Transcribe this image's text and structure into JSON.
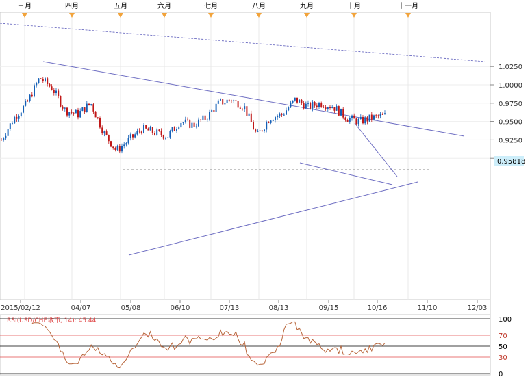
{
  "chart_data": [
    {
      "type": "candlestick",
      "symbol": "USD/CHF",
      "ylim": [
        0.8925,
        1.0375
      ],
      "y_ticks": [
        "1.0250",
        "1.0000",
        "0.9750",
        "0.9500",
        "0.9250",
        "0.9000"
      ],
      "current_price": "0.95818",
      "month_markers": [
        "三月",
        "四月",
        "五月",
        "六月",
        "七月",
        "八月",
        "九月",
        "十月",
        "十一月"
      ],
      "x_date_labels": [
        "2015/02/12",
        "04/07",
        "05/08",
        "06/10",
        "07/13",
        "08/13",
        "09/15",
        "10/16",
        "11/10",
        "12/03"
      ],
      "reference_line": 0.953,
      "close_path": [
        [
          "2015/02/12",
          0.925
        ],
        [
          "02/24",
          0.955
        ],
        [
          "03/02",
          0.975
        ],
        [
          "03/13",
          1.01
        ],
        [
          "03/20",
          0.995
        ],
        [
          "04/07",
          0.965
        ],
        [
          "04/15",
          0.96
        ],
        [
          "04/23",
          0.975
        ],
        [
          "05/08",
          0.935
        ],
        [
          "05/15",
          0.91
        ],
        [
          "05/21",
          0.925
        ],
        [
          "05/28",
          0.94
        ],
        [
          "06/10",
          0.935
        ],
        [
          "06/18",
          0.93
        ],
        [
          "06/25",
          0.95
        ],
        [
          "07/13",
          0.945
        ],
        [
          "07/24",
          0.955
        ],
        [
          "08/04",
          0.975
        ],
        [
          "08/13",
          0.98
        ],
        [
          "08/18",
          0.97
        ],
        [
          "08/24",
          0.93
        ],
        [
          "08/27",
          0.955
        ],
        [
          "09/01",
          0.96
        ],
        [
          "09/10",
          0.98
        ],
        [
          "09/15",
          0.97
        ],
        [
          "09/28",
          0.975
        ],
        [
          "10/05",
          0.97
        ],
        [
          "10/13",
          0.955
        ],
        [
          "10/16",
          0.95
        ],
        [
          "10/21",
          0.955
        ],
        [
          "10/23",
          0.958
        ]
      ]
    },
    {
      "type": "line",
      "title": "RSI(USD/CHF.收市, 14): 45.44",
      "ylim": [
        0,
        100
      ],
      "y_ticks": [
        "100",
        "70",
        "50",
        "30",
        "0"
      ],
      "levels": [
        70,
        50,
        30
      ]
    }
  ],
  "colors": {
    "up_candle": "#1560b7",
    "down_candle": "#c01818",
    "trendline": "#6d6dc2",
    "reference_line": "#666666",
    "rsi_line": "#b8653a",
    "rsi_level_line": "#e04a4a",
    "price_badge": "#cdeefa",
    "month_marker": "#f2a33a"
  }
}
